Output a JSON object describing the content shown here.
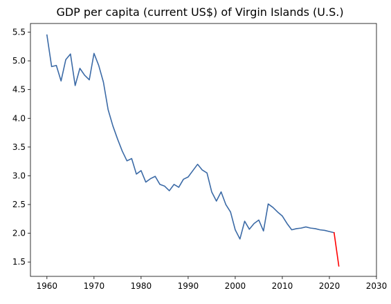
{
  "chart_data": {
    "type": "line",
    "title": "GDP per capita (current US$) of Virgin Islands (U.S.)",
    "xlabel": "",
    "ylabel": "",
    "xlim": [
      1956.5,
      2030
    ],
    "ylim": [
      1.25,
      5.65
    ],
    "x_ticks": [
      1960,
      1970,
      1980,
      1990,
      2000,
      2010,
      2020,
      2030
    ],
    "y_ticks": [
      1.5,
      2.0,
      2.5,
      3.0,
      3.5,
      4.0,
      4.5,
      5.0,
      5.5
    ],
    "x_tick_labels": [
      "1960",
      "1970",
      "1980",
      "1990",
      "2000",
      "2010",
      "2020",
      "2030"
    ],
    "y_tick_labels": [
      "1.5",
      "2.0",
      "2.5",
      "3.0",
      "3.5",
      "4.0",
      "4.5",
      "5.0",
      "5.5"
    ],
    "grid": false,
    "series": [
      {
        "color": "#3b6aa6",
        "x": [
          1960,
          1961,
          1962,
          1963,
          1964,
          1965,
          1966,
          1967,
          1968,
          1969,
          1970,
          1971,
          1972,
          1973,
          1974,
          1975,
          1976,
          1977,
          1978,
          1979,
          1980,
          1981,
          1982,
          1983,
          1984,
          1985,
          1986,
          1987,
          1988,
          1989,
          1990,
          1991,
          1992,
          1993,
          1994,
          1995,
          1996,
          1997,
          1998,
          1999,
          2000,
          2001,
          2002,
          2003,
          2004,
          2005,
          2006,
          2007,
          2008,
          2009,
          2010,
          2011,
          2012,
          2013,
          2014,
          2015,
          2016,
          2017,
          2018,
          2019,
          2020,
          2021
        ],
        "values": [
          5.45,
          4.9,
          4.92,
          4.65,
          5.02,
          5.12,
          4.57,
          4.87,
          4.75,
          4.67,
          5.13,
          4.92,
          4.63,
          4.15,
          3.87,
          3.64,
          3.43,
          3.26,
          3.3,
          3.03,
          3.09,
          2.89,
          2.95,
          2.99,
          2.85,
          2.82,
          2.74,
          2.85,
          2.8,
          2.94,
          2.98,
          3.09,
          3.2,
          3.1,
          3.05,
          2.72,
          2.56,
          2.72,
          2.5,
          2.37,
          2.06,
          1.9,
          2.21,
          2.07,
          2.17,
          2.23,
          2.04,
          2.51,
          2.45,
          2.37,
          2.3,
          2.17,
          2.06,
          2.08,
          2.09,
          2.11,
          2.09,
          2.08,
          2.06,
          2.05,
          2.03,
          2.01
        ]
      },
      {
        "color": "#ff0000",
        "x": [
          2021,
          2022
        ],
        "values": [
          2.01,
          1.43
        ]
      }
    ]
  }
}
